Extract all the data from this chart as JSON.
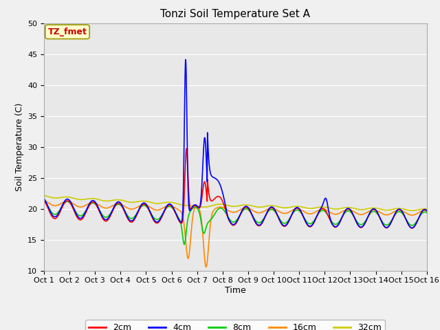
{
  "title": "Tonzi Soil Temperature Set A",
  "xlabel": "Time",
  "ylabel": "Soil Temperature (C)",
  "ylim": [
    10,
    50
  ],
  "yticks": [
    10,
    15,
    20,
    25,
    30,
    35,
    40,
    45,
    50
  ],
  "xlim": [
    0,
    15
  ],
  "xtick_labels": [
    "Oct 1",
    "Oct 2",
    "Oct 3",
    "Oct 4",
    "Oct 5",
    "Oct 6",
    "Oct 7",
    "Oct 8",
    "Oct 9",
    "Oct 10",
    "Oct 11",
    "Oct 12",
    "Oct 13",
    "Oct 14",
    "Oct 15",
    "Oct 16"
  ],
  "series_colors": {
    "2cm": "#ff0000",
    "4cm": "#0000ff",
    "8cm": "#00cc00",
    "16cm": "#ff8800",
    "32cm": "#cccc00"
  },
  "annotation_text": "TZ_fmet",
  "background_color": "#e8e8e8",
  "fig_background_color": "#f0f0f0",
  "grid_color": "#ffffff",
  "title_fontsize": 11,
  "axis_label_fontsize": 9,
  "tick_fontsize": 8,
  "legend_fontsize": 9
}
